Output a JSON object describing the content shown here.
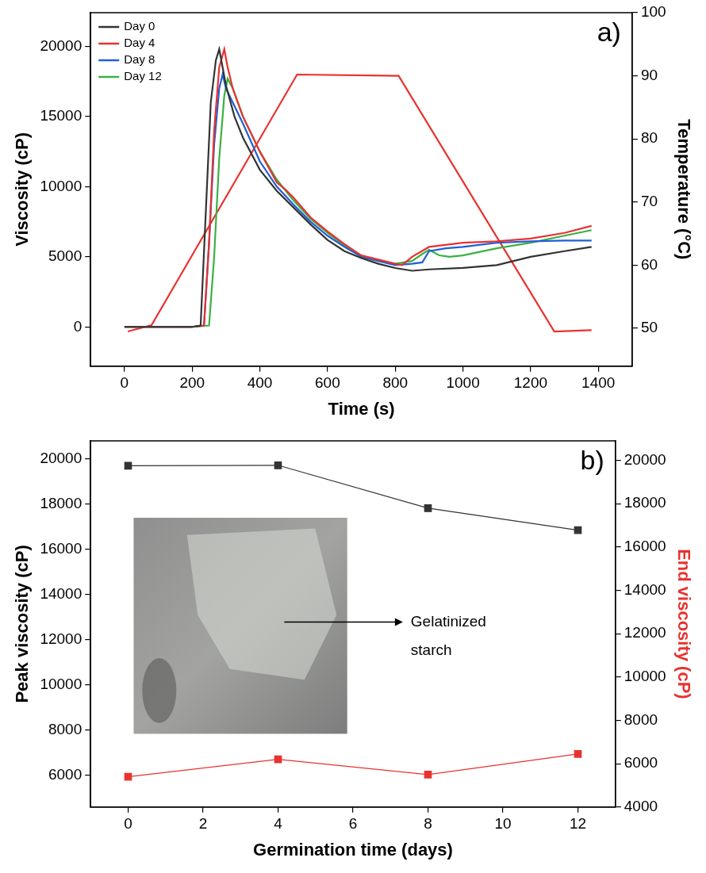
{
  "chart_data": [
    {
      "type": "line",
      "annotations": [
        "a)"
      ],
      "x_label": "Time (s)",
      "y_label": "Viscosity (cP)",
      "y2_label": "Temperature (°C)",
      "xlim": [
        -100,
        1500
      ],
      "xticks": [
        0,
        200,
        400,
        600,
        800,
        1000,
        1200,
        1400
      ],
      "ylim": [
        -2800,
        22400
      ],
      "yticks": [
        0,
        5000,
        10000,
        15000,
        20000
      ],
      "y2lim": [
        44,
        100
      ],
      "y2ticks": [
        50,
        60,
        70,
        80,
        90,
        100
      ],
      "grid": false,
      "legend": "upper left",
      "series": [
        {
          "name": "Day 0",
          "color": "#333333",
          "x": [
            0,
            100,
            200,
            225,
            240,
            255,
            270,
            280,
            290,
            300,
            325,
            350,
            400,
            450,
            500,
            550,
            600,
            650,
            700,
            750,
            800,
            850,
            900,
            1000,
            1100,
            1200,
            1300,
            1380
          ],
          "values": [
            0,
            0,
            0,
            100,
            8000,
            16000,
            19000,
            19800,
            18500,
            17200,
            15000,
            13500,
            11200,
            9700,
            8500,
            7300,
            6200,
            5400,
            4900,
            4500,
            4200,
            4000,
            4100,
            4200,
            4400,
            5000,
            5400,
            5700
          ]
        },
        {
          "name": "Day 4",
          "color": "#e8322f",
          "x": [
            0,
            100,
            200,
            235,
            250,
            265,
            280,
            295,
            305,
            320,
            350,
            400,
            450,
            475,
            500,
            550,
            600,
            650,
            700,
            750,
            800,
            820,
            850,
            900,
            1000,
            1100,
            1200,
            1300,
            1380
          ],
          "values": [
            0,
            0,
            0,
            100,
            6000,
            14000,
            18500,
            19800,
            18500,
            17000,
            15000,
            12500,
            10300,
            9800,
            9200,
            7800,
            6800,
            5900,
            5100,
            4800,
            4500,
            4400,
            5000,
            5700,
            6000,
            6100,
            6300,
            6700,
            7200
          ]
        },
        {
          "name": "Day 8",
          "color": "#1f5fd6",
          "x": [
            0,
            100,
            200,
            235,
            250,
            265,
            280,
            290,
            300,
            320,
            350,
            400,
            450,
            500,
            550,
            600,
            650,
            700,
            750,
            800,
            850,
            880,
            900,
            950,
            1000,
            1100,
            1200,
            1300,
            1380
          ],
          "values": [
            0,
            0,
            0,
            100,
            6000,
            13000,
            17000,
            18000,
            17000,
            16000,
            14500,
            11800,
            10000,
            8700,
            7500,
            6500,
            5700,
            5000,
            4700,
            4400,
            4500,
            4600,
            5400,
            5600,
            5700,
            6000,
            6100,
            6150,
            6150
          ]
        },
        {
          "name": "Day 12",
          "color": "#3cb043",
          "x": [
            0,
            100,
            200,
            250,
            265,
            280,
            295,
            305,
            320,
            350,
            400,
            450,
            500,
            550,
            600,
            650,
            700,
            750,
            800,
            850,
            880,
            900,
            930,
            960,
            1000,
            1100,
            1200,
            1300,
            1380
          ],
          "values": [
            0,
            0,
            0,
            100,
            5000,
            12000,
            16500,
            17700,
            17000,
            15000,
            12500,
            10500,
            9000,
            7700,
            6700,
            5800,
            5000,
            4700,
            4500,
            4700,
            5200,
            5500,
            5100,
            5000,
            5100,
            5600,
            6000,
            6500,
            6900
          ]
        },
        {
          "color": "#e8322f",
          "axis": "y2",
          "x": [
            10,
            80,
            510,
            810,
            1270,
            1380
          ],
          "values": [
            49.5,
            50.5,
            90.2,
            90,
            49.5,
            49.7
          ]
        }
      ]
    },
    {
      "type": "line",
      "annotations": [
        "b)",
        "Gelatinized starch"
      ],
      "x_label": "Germination time (days)",
      "y_label": "Peak viscosity (cP)",
      "y2_label": "End viscosity (cP)",
      "x": [
        0,
        4,
        8,
        12
      ],
      "xlim": [
        -1,
        13
      ],
      "xticks": [
        0,
        2,
        4,
        6,
        8,
        10,
        12
      ],
      "ylim": [
        4600,
        20800
      ],
      "yticks": [
        6000,
        8000,
        10000,
        12000,
        14000,
        16000,
        18000,
        20000
      ],
      "y2lim": [
        4000,
        20900
      ],
      "y2ticks": [
        4000,
        6000,
        8000,
        10000,
        12000,
        14000,
        16000,
        18000,
        20000
      ],
      "grid": false,
      "series": [
        {
          "color": "#333333",
          "marker": "square",
          "values": [
            19700,
            19720,
            17820,
            16850
          ]
        },
        {
          "color": "#e8322f",
          "marker": "square",
          "axis": "y2",
          "values": [
            5400,
            6200,
            5500,
            6450
          ]
        }
      ]
    }
  ]
}
